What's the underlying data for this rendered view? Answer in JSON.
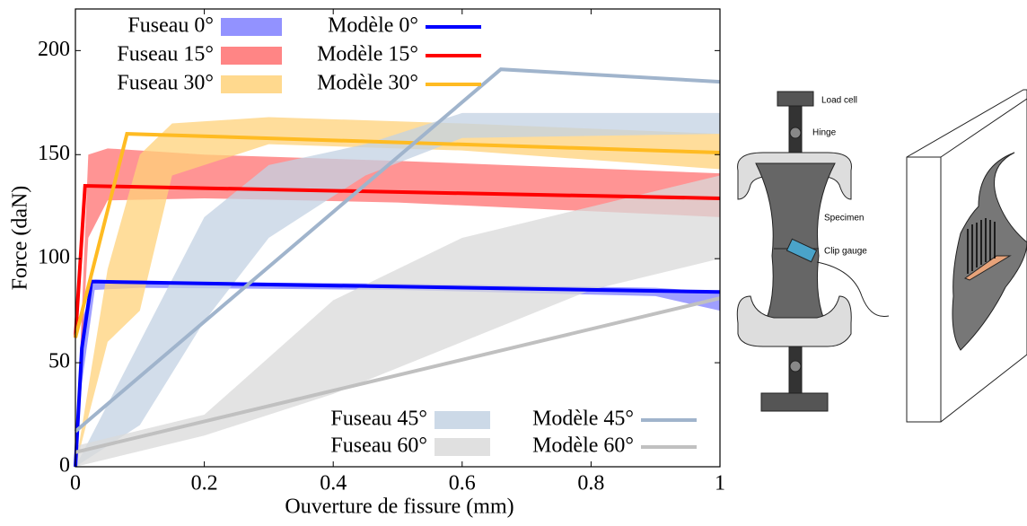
{
  "chart_data": {
    "type": "band-line",
    "x_label": "Ouverture de fissure (mm)",
    "y_label": "Force (daN)",
    "xlim": [
      0,
      1
    ],
    "ylim": [
      0,
      220
    ],
    "xticks": [
      0,
      0.2,
      0.4,
      0.6,
      0.8,
      1
    ],
    "yticks": [
      0,
      50,
      100,
      150,
      200
    ],
    "series": [
      {
        "name": "Fuseau 0°",
        "kind": "band",
        "color": "#7f7fff",
        "x": [
          0,
          0.01,
          0.03,
          0.1,
          0.5,
          0.9,
          1
        ],
        "lower": [
          0,
          40,
          85,
          86,
          85,
          82,
          75
        ],
        "upper": [
          0,
          70,
          90,
          89,
          88,
          86,
          84
        ]
      },
      {
        "name": "Modèle 0°",
        "kind": "line",
        "color": "#0000ff",
        "x": [
          0,
          0.01,
          0.025,
          1
        ],
        "values": [
          0,
          57,
          89,
          84
        ]
      },
      {
        "name": "Fuseau 15°",
        "kind": "band",
        "color": "#ff7070",
        "x": [
          0,
          0.02,
          0.05,
          0.2,
          0.5,
          1
        ],
        "lower": [
          0,
          110,
          128,
          129,
          127,
          120
        ],
        "upper": [
          0,
          150,
          153,
          150,
          147,
          141
        ]
      },
      {
        "name": "Modèle 15°",
        "kind": "line",
        "color": "#ff0000",
        "x": [
          0,
          0.015,
          1
        ],
        "values": [
          62,
          135,
          129
        ]
      },
      {
        "name": "Fuseau 30°",
        "kind": "band",
        "color": "#ffd27a",
        "x": [
          0,
          0.05,
          0.1,
          0.15,
          0.3,
          0.6,
          1
        ],
        "lower": [
          0,
          60,
          75,
          140,
          155,
          152,
          143
        ],
        "upper": [
          0,
          95,
          150,
          165,
          168,
          165,
          160
        ]
      },
      {
        "name": "Modèle 30°",
        "kind": "line",
        "color": "#ffbb22",
        "x": [
          0,
          0.08,
          1
        ],
        "values": [
          62,
          160,
          151
        ]
      },
      {
        "name": "Fuseau 45°",
        "kind": "band",
        "color": "#c3d2e3",
        "x": [
          0,
          0.1,
          0.2,
          0.3,
          0.45,
          0.6,
          1
        ],
        "lower": [
          0,
          20,
          70,
          110,
          140,
          158,
          160
        ],
        "upper": [
          0,
          60,
          120,
          145,
          155,
          170,
          170
        ]
      },
      {
        "name": "Modèle 45°",
        "kind": "line",
        "color": "#a0b4cc",
        "x": [
          0,
          0.66,
          1
        ],
        "values": [
          17,
          191,
          185
        ]
      },
      {
        "name": "Fuseau 60°",
        "kind": "band",
        "color": "#dadada",
        "x": [
          0,
          0.2,
          0.4,
          0.6,
          0.8,
          1
        ],
        "lower": [
          0,
          15,
          35,
          60,
          85,
          100
        ],
        "upper": [
          10,
          25,
          80,
          110,
          125,
          140
        ]
      },
      {
        "name": "Modèle 60°",
        "kind": "line",
        "color": "#c0c0c0",
        "x": [
          0,
          1
        ],
        "values": [
          7,
          81
        ]
      }
    ]
  },
  "diagram": {
    "labels": [
      "Load cell",
      "Hinge",
      "Specimen",
      "Clip gauge"
    ]
  }
}
